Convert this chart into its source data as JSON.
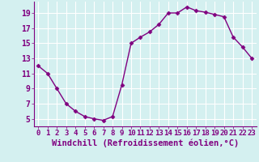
{
  "x": [
    0,
    1,
    2,
    3,
    4,
    5,
    6,
    7,
    8,
    9,
    10,
    11,
    12,
    13,
    14,
    15,
    16,
    17,
    18,
    19,
    20,
    21,
    22,
    23
  ],
  "y": [
    12.0,
    11.0,
    9.0,
    7.0,
    6.0,
    5.3,
    5.0,
    4.8,
    5.3,
    9.5,
    15.0,
    15.8,
    16.5,
    17.5,
    19.0,
    19.0,
    19.8,
    19.3,
    19.1,
    18.8,
    18.5,
    15.8,
    14.5,
    13.0
  ],
  "xlabel": "Windchill (Refroidissement éolien,°C)",
  "xlim_min": -0.5,
  "xlim_max": 23.5,
  "ylim_min": 4.0,
  "ylim_max": 20.5,
  "yticks": [
    5,
    7,
    9,
    11,
    13,
    15,
    17,
    19
  ],
  "xticks": [
    0,
    1,
    2,
    3,
    4,
    5,
    6,
    7,
    8,
    9,
    10,
    11,
    12,
    13,
    14,
    15,
    16,
    17,
    18,
    19,
    20,
    21,
    22,
    23
  ],
  "line_color": "#800080",
  "marker": "D",
  "marker_size": 2.5,
  "line_width": 1.0,
  "background_color": "#d4f0f0",
  "grid_color": "#ffffff",
  "xlabel_fontsize": 7.5,
  "tick_fontsize": 7
}
